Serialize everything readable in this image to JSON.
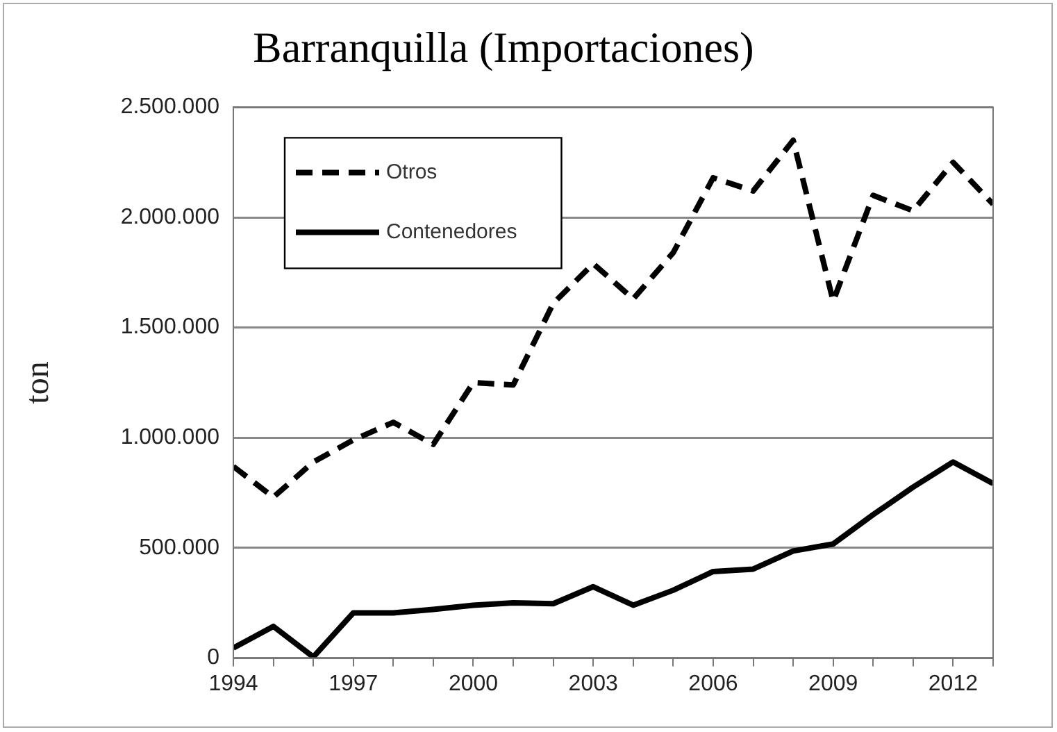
{
  "chart_data": {
    "type": "line",
    "title": "Barranquilla (Importaciones)",
    "ylabel": "ton",
    "x": [
      1994,
      1995,
      1996,
      1997,
      1998,
      1999,
      2000,
      2001,
      2002,
      2003,
      2004,
      2005,
      2006,
      2007,
      2008,
      2009,
      2010,
      2011,
      2012,
      2013
    ],
    "series": [
      {
        "name": "Otros",
        "color": "#000000",
        "line_style": "dashed",
        "values": [
          870000,
          730000,
          890000,
          990000,
          1070000,
          970000,
          1250000,
          1240000,
          1610000,
          1790000,
          1630000,
          1840000,
          2180000,
          2120000,
          2350000,
          1620000,
          2100000,
          2030000,
          2250000,
          2060000
        ]
      },
      {
        "name": "Contenedores",
        "color": "#000000",
        "line_style": "solid",
        "values": [
          46000,
          144000,
          5000,
          205000,
          205000,
          221000,
          240000,
          251000,
          247000,
          324000,
          240000,
          308000,
          393000,
          404000,
          486000,
          518000,
          651000,
          776000,
          890000,
          792000
        ]
      }
    ],
    "xlim": [
      1994,
      2013
    ],
    "xticks": [
      1994,
      {
        "value": 1995,
        "label": null
      },
      {
        "value": 1996,
        "label": null
      },
      1997,
      {
        "value": 1998,
        "label": null
      },
      {
        "value": 1999,
        "label": null
      },
      2000,
      {
        "value": 2001,
        "label": null
      },
      {
        "value": 2002,
        "label": null
      },
      2003,
      {
        "value": 2004,
        "label": null
      },
      {
        "value": 2005,
        "label": null
      },
      2006,
      {
        "value": 2007,
        "label": null
      },
      {
        "value": 2008,
        "label": null
      },
      2009,
      {
        "value": 2010,
        "label": null
      },
      {
        "value": 2011,
        "label": null
      },
      2012,
      {
        "value": 2013,
        "label": null
      }
    ],
    "ylim": [
      0,
      2500000
    ],
    "yticks": [
      0,
      {
        "value": 500000,
        "label": "500.000"
      },
      {
        "value": 1000000,
        "label": "1.000.000"
      },
      {
        "value": 1500000,
        "label": "1.500.000"
      },
      {
        "value": 2000000,
        "label": "2.000.000"
      },
      {
        "value": 2500000,
        "label": "2.500.000"
      }
    ],
    "grid": "y",
    "legend": "top left",
    "marker": "none"
  }
}
